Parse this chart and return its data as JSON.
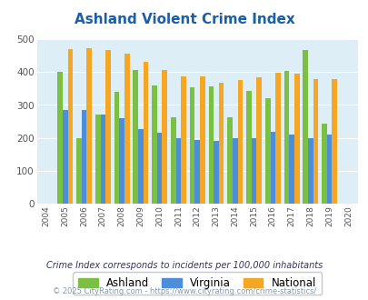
{
  "title": "Ashland Violent Crime Index",
  "years": [
    2004,
    2005,
    2006,
    2007,
    2008,
    2009,
    2010,
    2011,
    2012,
    2013,
    2014,
    2015,
    2016,
    2017,
    2018,
    2019,
    2020
  ],
  "ashland": [
    null,
    400,
    200,
    270,
    340,
    407,
    360,
    262,
    355,
    357,
    262,
    342,
    320,
    403,
    468,
    244,
    null
  ],
  "virginia": [
    null,
    285,
    285,
    272,
    260,
    228,
    215,
    200,
    193,
    190,
    200,
    200,
    220,
    210,
    200,
    210,
    null
  ],
  "national": [
    null,
    469,
    473,
    467,
    455,
    432,
    405,
    388,
    388,
    368,
    377,
    384,
    399,
    394,
    379,
    379,
    null
  ],
  "ashland_color": "#7bc043",
  "virginia_color": "#4d8edb",
  "national_color": "#f5a623",
  "bg_color": "#ddeef6",
  "ylim": [
    0,
    500
  ],
  "yticks": [
    0,
    100,
    200,
    300,
    400,
    500
  ],
  "subtitle": "Crime Index corresponds to incidents per 100,000 inhabitants",
  "footer": "© 2025 CityRating.com - https://www.cityrating.com/crime-statistics/",
  "bar_width": 0.27,
  "title_color": "#1a5fa8",
  "subtitle_color": "#333366",
  "footer_color": "#8899aa"
}
